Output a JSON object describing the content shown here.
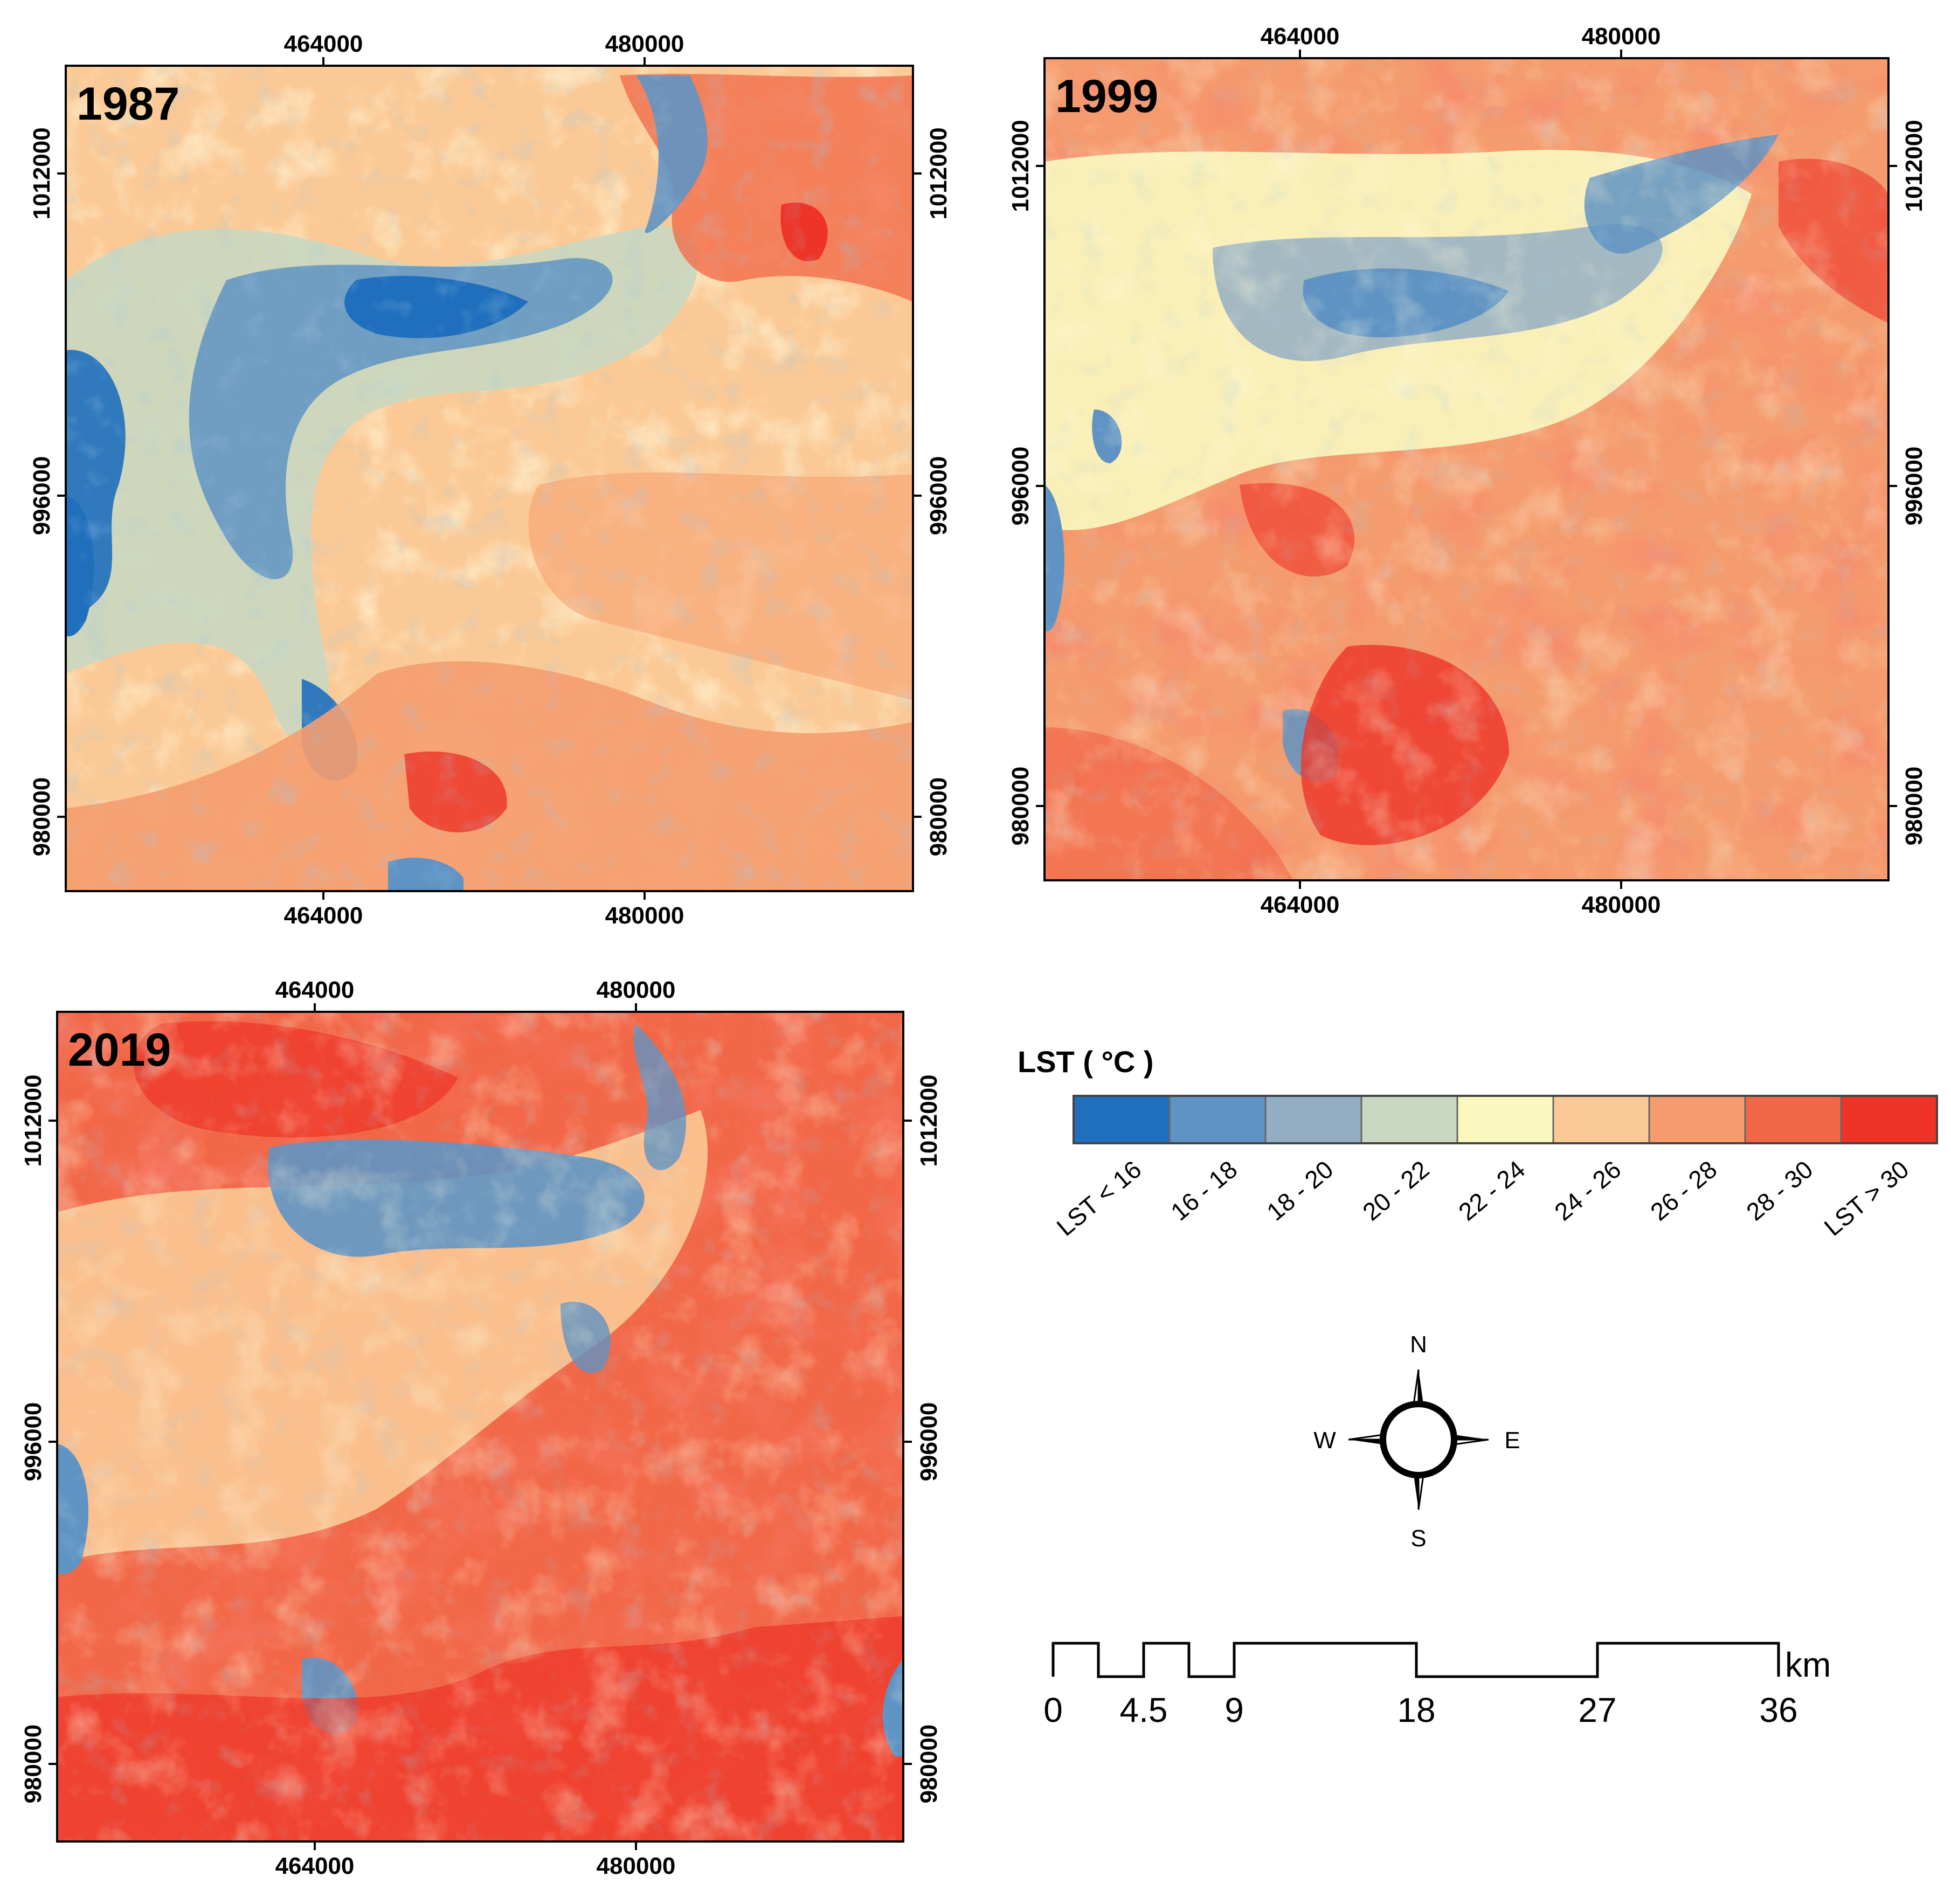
{
  "panels": [
    {
      "id": "p1987",
      "year": "1987",
      "top_ticks": [
        "464000",
        "480000"
      ],
      "bottom_ticks": [
        "464000",
        "480000"
      ],
      "left_ticks": [
        "1012000",
        "996000",
        "980000"
      ],
      "right_ticks": [
        "1012000",
        "996000",
        "980000"
      ],
      "warmth": 0.0
    },
    {
      "id": "p1999",
      "year": "1999",
      "top_ticks": [
        "464000",
        "480000"
      ],
      "bottom_ticks": [
        "464000",
        "480000"
      ],
      "left_ticks": [
        "1012000",
        "996000",
        "980000"
      ],
      "right_ticks": [
        "1012000",
        "996000",
        "980000"
      ],
      "warmth": 0.45
    },
    {
      "id": "p2019",
      "year": "2019",
      "top_ticks": [
        "464000",
        "480000"
      ],
      "bottom_ticks": [
        "464000",
        "480000"
      ],
      "left_ticks": [
        "1012000",
        "996000",
        "980000"
      ],
      "right_ticks": [
        "1012000",
        "996000",
        "980000"
      ],
      "warmth": 0.85
    }
  ],
  "legend": {
    "title": "LST ( °C )",
    "classes": [
      {
        "label": "LST < 16",
        "color": "#1f6fbd"
      },
      {
        "label": "16 - 18",
        "color": "#5f93c3"
      },
      {
        "label": "18 - 20",
        "color": "#93aec3"
      },
      {
        "label": "20 - 22",
        "color": "#c9d7c0"
      },
      {
        "label": "22 - 24",
        "color": "#fbf8bf"
      },
      {
        "label": "24 - 26",
        "color": "#fbc995"
      },
      {
        "label": "26 - 28",
        "color": "#f59c6e"
      },
      {
        "label": "28 - 30",
        "color": "#f26747"
      },
      {
        "label": "LST > 30",
        "color": "#ee3327"
      }
    ]
  },
  "compass": {
    "n": "N",
    "s": "S",
    "e": "E",
    "w": "W"
  },
  "scalebar": {
    "unit": "km",
    "labels": [
      "0",
      "4.5",
      "9",
      "18",
      "27",
      "36"
    ]
  }
}
